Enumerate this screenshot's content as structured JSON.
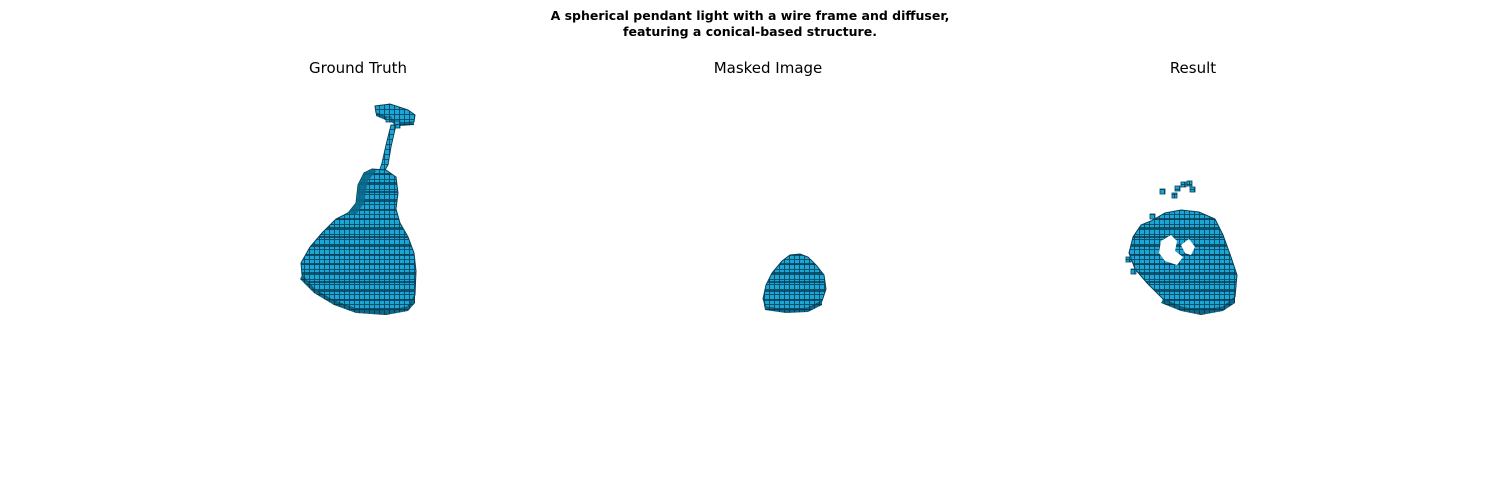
{
  "figure": {
    "title_line1": "A spherical pendant light with a wire frame and diffuser,",
    "title_line2": "featuring a conical-based structure."
  },
  "panels": [
    {
      "title": "Ground Truth"
    },
    {
      "title": "Masked Image"
    },
    {
      "title": "Result"
    }
  ],
  "colors": {
    "voxel_face": "#1aa7d8",
    "voxel_dark": "#0b5a78",
    "voxel_edge": "#0a3f56"
  }
}
